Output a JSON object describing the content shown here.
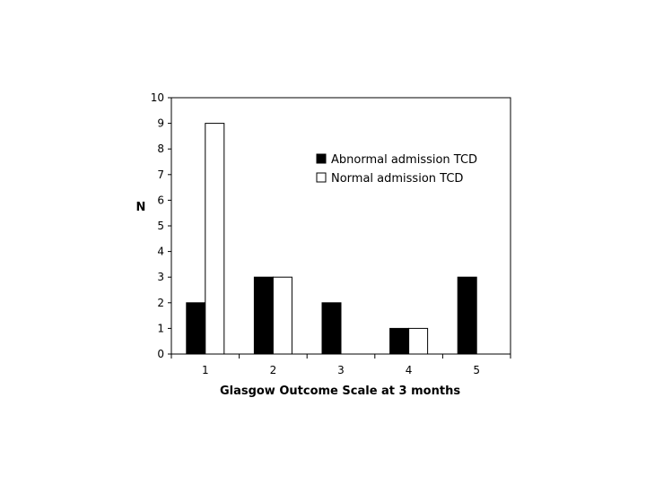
{
  "chart_data": {
    "type": "bar",
    "categories": [
      "1",
      "2",
      "3",
      "4",
      "5"
    ],
    "series": [
      {
        "name": "Abnormal admission TCD",
        "values": [
          2,
          3,
          2,
          1,
          3
        ],
        "color": "#000000"
      },
      {
        "name": "Normal admission TCD",
        "values": [
          9,
          3,
          0,
          1,
          0
        ],
        "color": "#ffffff"
      }
    ],
    "xlabel": "Glasgow Outcome Scale at 3 months",
    "ylabel": "N",
    "ylim": [
      0,
      10
    ],
    "yticks": [
      "0",
      "1",
      "2",
      "3",
      "4",
      "5",
      "6",
      "7",
      "8",
      "9",
      "10"
    ],
    "grid": false,
    "legend_position": "top-right"
  }
}
